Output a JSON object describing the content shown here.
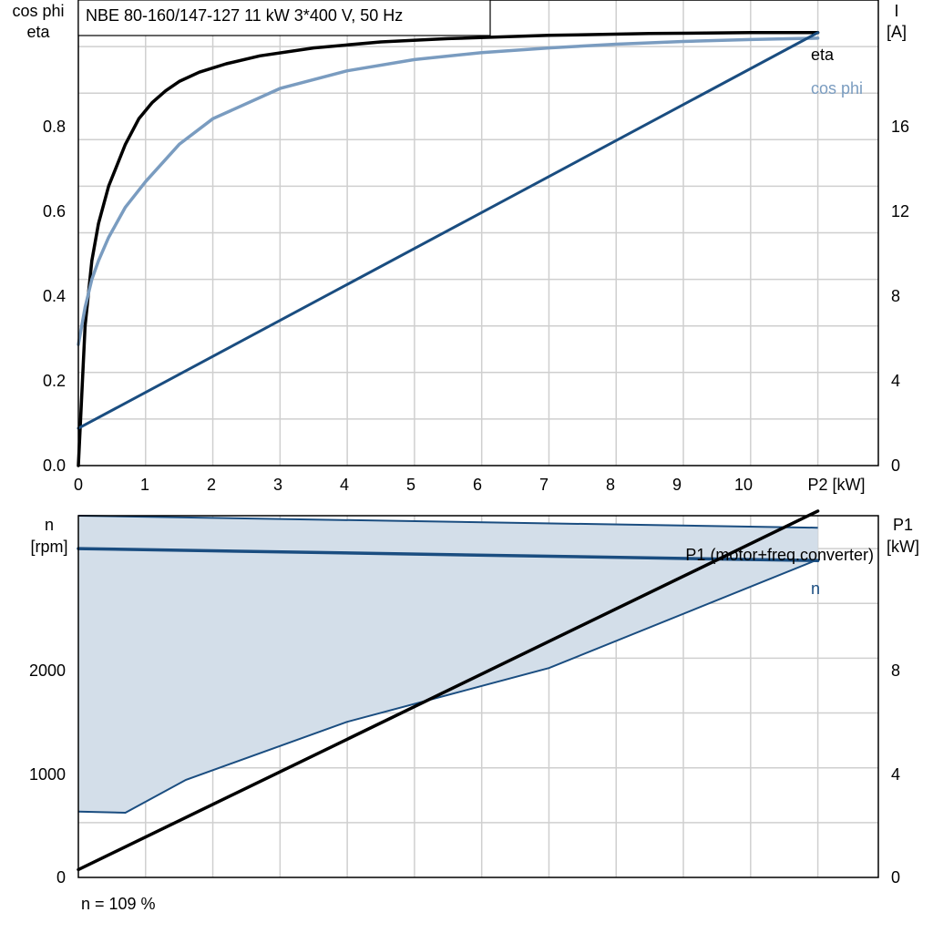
{
  "colors": {
    "eta": "#000000",
    "cos_phi": "#7a9cc0",
    "current": "#1a4d80",
    "speed": "#1a4d80",
    "power": "#000000",
    "band_fill": "#d3dee9",
    "band_edge": "#1a4d80",
    "grid": "#cfcfcf"
  },
  "chart_data": [
    {
      "type": "line",
      "title": "NBE 80-160/147-127   11 kW   3*400 V, 50 Hz",
      "xlabel": "P2 [kW]",
      "ylabel_left": [
        "cos phi",
        "eta"
      ],
      "ylabel_right": [
        "I",
        "[A]"
      ],
      "x_ticks": [
        "0",
        "1",
        "2",
        "3",
        "4",
        "5",
        "6",
        "7",
        "8",
        "9",
        "10"
      ],
      "y_left_ticks": [
        "0.0",
        "0.2",
        "0.4",
        "0.6",
        "0.8"
      ],
      "y_right_ticks": [
        "0",
        "4",
        "8",
        "12",
        "16"
      ],
      "xlim": [
        0,
        11.9
      ],
      "ylim_left": [
        0,
        1.0
      ],
      "ylim_right": [
        0,
        20
      ],
      "grid": true,
      "series": [
        {
          "name": "eta",
          "axis": "left",
          "x": [
            0,
            0.1,
            0.2,
            0.3,
            0.45,
            0.7,
            0.9,
            1.1,
            1.3,
            1.5,
            1.8,
            2.2,
            2.7,
            3.5,
            4.5,
            5.5,
            7,
            8.5,
            10,
            11,
            11.0
          ],
          "y": [
            0,
            0.3,
            0.44,
            0.52,
            0.6,
            0.69,
            0.745,
            0.78,
            0.805,
            0.825,
            0.845,
            0.863,
            0.88,
            0.897,
            0.91,
            0.917,
            0.924,
            0.928,
            0.93,
            0.93,
            0.93
          ]
        },
        {
          "name": "cos phi",
          "axis": "left",
          "x": [
            0,
            0.1,
            0.2,
            0.3,
            0.45,
            0.7,
            1,
            1.5,
            2,
            3,
            4,
            5,
            6,
            7,
            8,
            9,
            10,
            11
          ],
          "y": [
            0.26,
            0.34,
            0.4,
            0.44,
            0.49,
            0.555,
            0.61,
            0.69,
            0.745,
            0.81,
            0.848,
            0.872,
            0.887,
            0.897,
            0.905,
            0.911,
            0.915,
            0.918
          ]
        },
        {
          "name": "I",
          "axis": "right",
          "x": [
            0,
            11
          ],
          "y": [
            1.6,
            18.6
          ]
        }
      ],
      "labels": [
        {
          "series": "eta",
          "text": "eta"
        },
        {
          "series": "cos phi",
          "text": "cos phi"
        }
      ]
    },
    {
      "type": "line",
      "xlim": [
        0,
        11.9
      ],
      "ylabel_left": [
        "n",
        "[rpm]"
      ],
      "ylabel_right": [
        "P1",
        "[kW]"
      ],
      "y_left_ticks": [
        "0",
        "1000",
        "2000"
      ],
      "y_right_ticks": [
        "0",
        "4",
        "8"
      ],
      "ylim_left": [
        0,
        3300
      ],
      "ylim_right": [
        0,
        11.6
      ],
      "grid": true,
      "band": {
        "axis": "left",
        "upper": {
          "x": [
            0,
            11
          ],
          "y": [
            3300,
            3190
          ]
        },
        "lower": {
          "x": [
            0,
            0.7,
            1.6,
            4,
            7,
            11
          ],
          "y": [
            600,
            590,
            890,
            1420,
            1910,
            2900
          ]
        }
      },
      "series": [
        {
          "name": "n",
          "axis": "left",
          "x": [
            0,
            11
          ],
          "y": [
            3000,
            2890
          ]
        },
        {
          "name": "P1 (motor+freq.converter)",
          "axis": "right",
          "x": [
            0,
            11
          ],
          "y": [
            0.25,
            11.75
          ]
        }
      ],
      "labels": [
        {
          "series": "P1 (motor+freq.converter)",
          "text": "P1 (motor+freq.converter)"
        },
        {
          "series": "n",
          "text": "n"
        }
      ],
      "footnote": "n = 109 %"
    }
  ]
}
